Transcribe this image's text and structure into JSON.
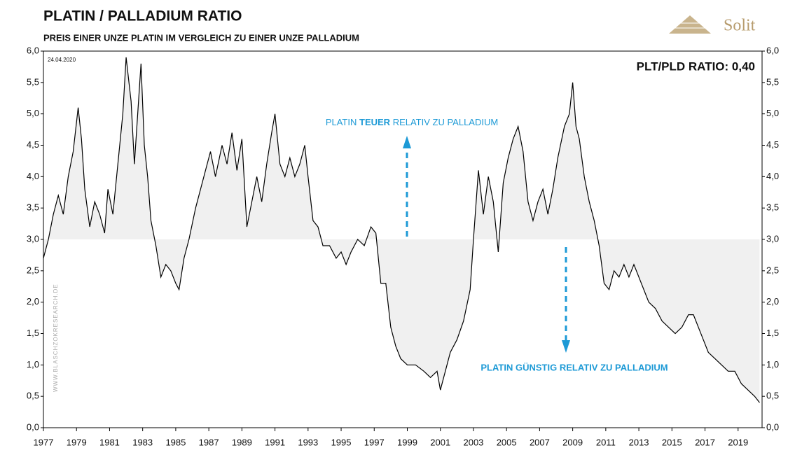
{
  "chart_data": {
    "type": "line",
    "title": "PLATIN / PALLADIUM RATIO",
    "subtitle": "PREIS EINER UNZE PLATIN IM VERGLEICH ZU EINER UNZE PALLADIUM",
    "date_note": "24.04.2020",
    "ratio_note": "PLT/PLD RATIO: 0,40",
    "upper_note": [
      "PLATIN",
      "TEUER",
      "RELATIV ZU PALLADIUM"
    ],
    "lower_note": "PLATIN GÜNSTIG RELATIV ZU PALLADIUM",
    "watermark": "WWW.BLASCHZOKRESEARCH.DE",
    "logo": "Solit",
    "color": "#000000",
    "fill_color": "#f0f0f0",
    "fill_baseline": 3,
    "x": [
      1977.0,
      1977.3,
      1977.6,
      1977.9,
      1978.2,
      1978.5,
      1978.8,
      1979.1,
      1979.3,
      1979.5,
      1979.8,
      1980.1,
      1980.4,
      1980.7,
      1980.9,
      1981.2,
      1981.5,
      1981.8,
      1982.0,
      1982.3,
      1982.5,
      1982.7,
      1982.9,
      1983.1,
      1983.3,
      1983.5,
      1983.8,
      1984.1,
      1984.4,
      1984.7,
      1985.0,
      1985.2,
      1985.5,
      1985.8,
      1986.2,
      1986.5,
      1986.8,
      1987.1,
      1987.4,
      1987.8,
      1988.1,
      1988.4,
      1988.7,
      1989.0,
      1989.3,
      1989.6,
      1989.9,
      1990.2,
      1990.5,
      1990.8,
      1991.0,
      1991.3,
      1991.6,
      1991.9,
      1992.2,
      1992.5,
      1992.8,
      1993.0,
      1993.3,
      1993.6,
      1993.9,
      1994.3,
      1994.7,
      1995.0,
      1995.3,
      1995.6,
      1996.0,
      1996.4,
      1996.8,
      1997.1,
      1997.4,
      1997.7,
      1998.0,
      1998.3,
      1998.6,
      1999.0,
      1999.5,
      2000.0,
      2000.4,
      2000.8,
      2001.0,
      2001.3,
      2001.6,
      2002.0,
      2002.4,
      2002.8,
      2003.0,
      2003.3,
      2003.6,
      2003.9,
      2004.2,
      2004.5,
      2004.8,
      2005.1,
      2005.4,
      2005.7,
      2006.0,
      2006.3,
      2006.6,
      2006.9,
      2007.2,
      2007.5,
      2007.8,
      2008.1,
      2008.5,
      2008.8,
      2009.0,
      2009.2,
      2009.4,
      2009.7,
      2010.0,
      2010.3,
      2010.6,
      2010.9,
      2011.2,
      2011.5,
      2011.8,
      2012.1,
      2012.4,
      2012.7,
      2013.0,
      2013.3,
      2013.6,
      2014.0,
      2014.4,
      2014.8,
      2015.2,
      2015.6,
      2016.0,
      2016.3,
      2016.6,
      2016.9,
      2017.2,
      2017.6,
      2018.0,
      2018.4,
      2018.8,
      2019.2,
      2019.6,
      2020.0,
      2020.3
    ],
    "values": [
      2.7,
      3.0,
      3.4,
      3.7,
      3.4,
      4.0,
      4.4,
      5.1,
      4.6,
      3.8,
      3.2,
      3.6,
      3.4,
      3.1,
      3.8,
      3.4,
      4.2,
      5.0,
      5.9,
      5.2,
      4.2,
      5.0,
      5.8,
      4.5,
      4.0,
      3.3,
      2.9,
      2.4,
      2.6,
      2.5,
      2.3,
      2.2,
      2.7,
      3.0,
      3.5,
      3.8,
      4.1,
      4.4,
      4.0,
      4.5,
      4.2,
      4.7,
      4.1,
      4.6,
      3.2,
      3.6,
      4.0,
      3.6,
      4.2,
      4.7,
      5.0,
      4.2,
      4.0,
      4.3,
      4.0,
      4.2,
      4.5,
      4.0,
      3.3,
      3.2,
      2.9,
      2.9,
      2.7,
      2.8,
      2.6,
      2.8,
      3.0,
      2.9,
      3.2,
      3.1,
      2.3,
      2.3,
      1.6,
      1.3,
      1.1,
      1.0,
      1.0,
      0.9,
      0.8,
      0.9,
      0.6,
      0.9,
      1.2,
      1.4,
      1.7,
      2.2,
      3.0,
      4.1,
      3.4,
      4.0,
      3.6,
      2.8,
      3.9,
      4.3,
      4.6,
      4.8,
      4.4,
      3.6,
      3.3,
      3.6,
      3.8,
      3.4,
      3.8,
      4.3,
      4.8,
      5.0,
      5.5,
      4.8,
      4.6,
      4.0,
      3.6,
      3.3,
      2.9,
      2.3,
      2.2,
      2.5,
      2.4,
      2.6,
      2.4,
      2.6,
      2.4,
      2.2,
      2.0,
      1.9,
      1.7,
      1.6,
      1.5,
      1.6,
      1.8,
      1.8,
      1.6,
      1.4,
      1.2,
      1.1,
      1.0,
      0.9,
      0.9,
      0.7,
      0.6,
      0.5,
      0.4
    ],
    "xlim": [
      1977,
      2020.45
    ],
    "xticks": [
      1977,
      1979,
      1981,
      1983,
      1985,
      1987,
      1989,
      1991,
      1993,
      1995,
      1997,
      1999,
      2001,
      2003,
      2005,
      2007,
      2009,
      2011,
      2013,
      2015,
      2017,
      2019
    ],
    "ylim": [
      0,
      6
    ],
    "yticks": [
      {
        "value": 0,
        "label": "0,0"
      },
      {
        "value": 0.5,
        "label": "0,5"
      },
      {
        "value": 1,
        "label": "1,0"
      },
      {
        "value": 1.5,
        "label": "1,5"
      },
      {
        "value": 2,
        "label": "2,0"
      },
      {
        "value": 2.5,
        "label": "2,5"
      },
      {
        "value": 3,
        "label": "3,0"
      },
      {
        "value": 3.5,
        "label": "3,5"
      },
      {
        "value": 4,
        "label": "4,0"
      },
      {
        "value": 4.5,
        "label": "4,5"
      },
      {
        "value": 5,
        "label": "5,0"
      },
      {
        "value": 5.5,
        "label": "5,5"
      },
      {
        "value": 6,
        "label": "6,0"
      }
    ]
  }
}
